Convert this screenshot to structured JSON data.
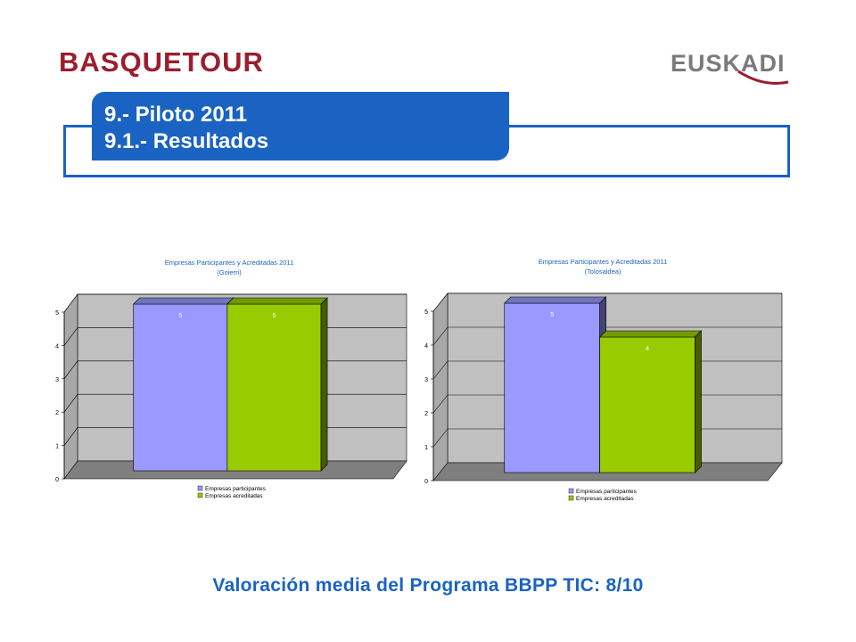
{
  "header": {
    "logo_left": "BASQUETOUR",
    "logo_right": "EUSKADI",
    "title_line1": "9.- Piloto 2011",
    "title_line2": "9.1.- Resultados"
  },
  "footer": {
    "text": "Valoración media del Programa BBPP TIC: 8/10"
  },
  "colors": {
    "accent": "#1a63c2",
    "brand": "#9b1e2e",
    "series1": "#9999ff",
    "series2": "#99cc00"
  },
  "chart_data": [
    {
      "type": "bar",
      "title": "Empresas Participantes y Acreditadas 2011",
      "subtitle": "(Goierri)",
      "categories": [
        ""
      ],
      "series": [
        {
          "name": "Empresas participantes",
          "values": [
            5
          ]
        },
        {
          "name": "Empresas acreditadas",
          "values": [
            5
          ]
        }
      ],
      "ylim": [
        0,
        5
      ],
      "yticks": [
        "0",
        "1",
        "2",
        "3",
        "4",
        "5"
      ],
      "grid": true,
      "legend": "bottom"
    },
    {
      "type": "bar",
      "title": "Empresas Participantes y Acreditadas 2011",
      "subtitle": "(Tolosaldea)",
      "categories": [
        ""
      ],
      "series": [
        {
          "name": "Empresas participantes",
          "values": [
            5
          ]
        },
        {
          "name": "Empresas acreditadas",
          "values": [
            4
          ]
        }
      ],
      "ylim": [
        0,
        5
      ],
      "yticks": [
        "0",
        "1",
        "2",
        "3",
        "4",
        "5"
      ],
      "grid": true,
      "legend": "bottom"
    }
  ]
}
